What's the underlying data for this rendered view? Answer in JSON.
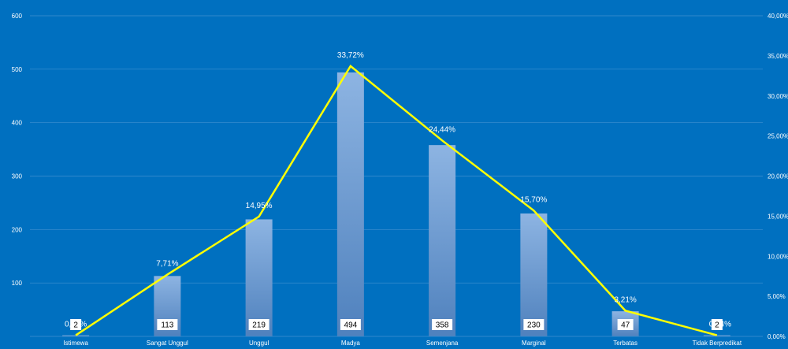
{
  "chart_data": {
    "type": "bar",
    "title": "",
    "categories": [
      "Istimewa",
      "Sangat Unggul",
      "Unggul",
      "Madya",
      "Semenjana",
      "Marginal",
      "Terbatas",
      "Tidak Berpredikat"
    ],
    "series": [
      {
        "type": "bar",
        "axis": "left",
        "values": [
          2,
          113,
          219,
          494,
          358,
          230,
          47,
          2
        ]
      },
      {
        "type": "line",
        "axis": "right",
        "values": [
          0.14,
          7.71,
          14.95,
          33.72,
          24.44,
          15.7,
          3.21,
          0.14
        ]
      }
    ],
    "count_labels": [
      "2",
      "113",
      "219",
      "494",
      "358",
      "230",
      "47",
      "2"
    ],
    "percent_labels": [
      "0,14%",
      "7,71%",
      "14,95%",
      "33,72%",
      "24,44%",
      "15,70%",
      "3,21%",
      "0,14%"
    ],
    "y_left": {
      "min": 0,
      "max": 600,
      "ticks": [
        "",
        "100",
        "200",
        "300",
        "400",
        "500",
        "600"
      ]
    },
    "y_right": {
      "min": 0,
      "max": 40,
      "ticks": [
        "0,00%",
        "5,00%",
        "10,00%",
        "15,00%",
        "20,00%",
        "25,00%",
        "30,00%",
        "35,00%",
        "40,00%"
      ]
    },
    "grid": true,
    "colors": {
      "background": "#0070C0",
      "bar_top": "#8DB4E2",
      "bar_bottom": "#4F81BD",
      "line": "#FFFF00",
      "grid": "#3F8FD0",
      "label_box": "#FFFFFF"
    }
  }
}
